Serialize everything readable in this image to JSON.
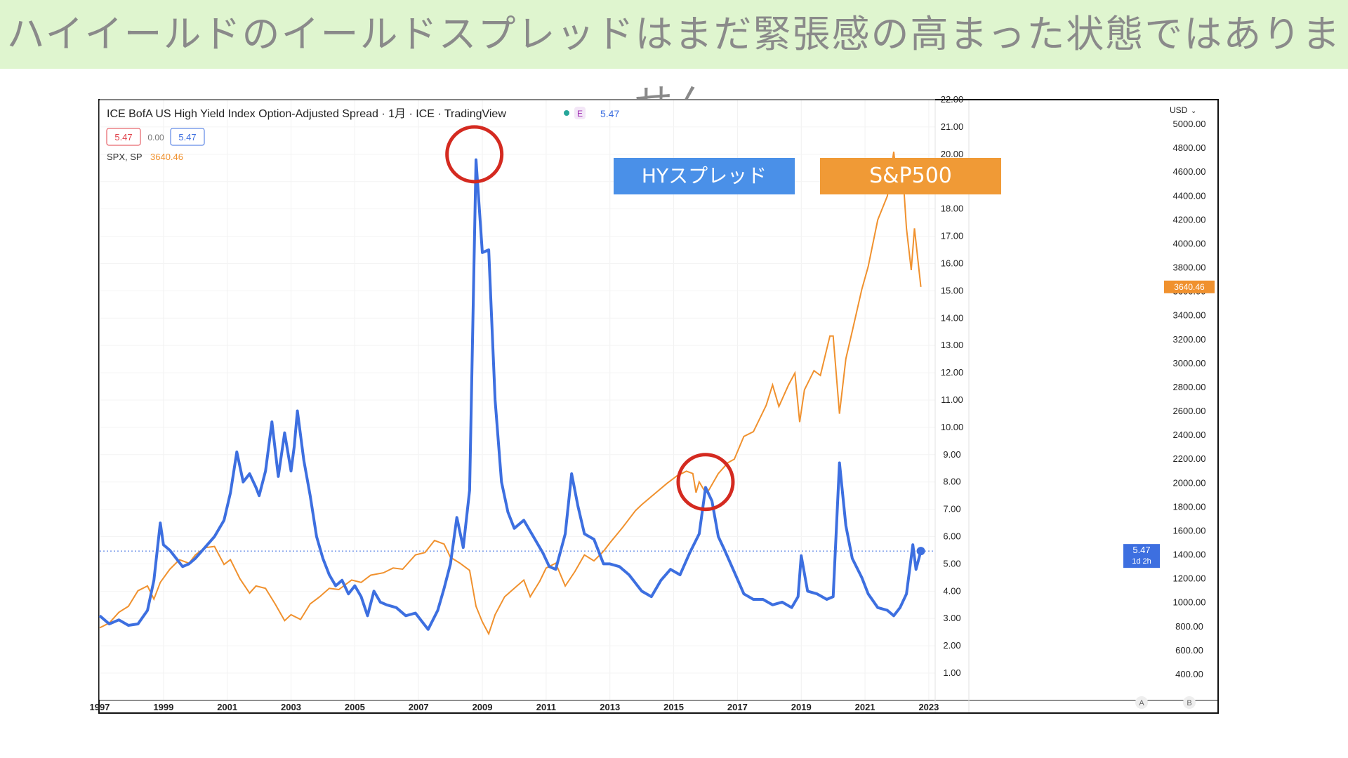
{
  "slide_title": "ハイイールドのイールドスプレッドはまだ緊張感の高まった状態ではありません",
  "chart_header": {
    "title": "ICE BofA US High Yield Index Option-Adjusted Spread · 1月 · ICE · TradingView",
    "badge": "E",
    "hy_value": "5.47",
    "ohlc": [
      "5.47",
      "0.00",
      "5.47"
    ],
    "spx_label": "SPX, SP",
    "spx_value": "3640.46"
  },
  "callouts": {
    "hy": "HYスプレッド",
    "sp": "S&P500"
  },
  "axis": {
    "currency": "USD",
    "last_hy": "5.47",
    "last_hy_sub": "1d 2h",
    "last_sp": "3640.46",
    "scale_a": "A",
    "scale_b": "B"
  },
  "colors": {
    "hy": "#3d6fe0",
    "sp": "#f0912e",
    "circle": "#d42a20",
    "hy_box": "#4a90e8",
    "sp_box": "#f09a36"
  },
  "chart_data": {
    "type": "line",
    "x_ticks": [
      "1997",
      "1999",
      "2001",
      "2003",
      "2005",
      "2007",
      "2009",
      "2011",
      "2013",
      "2015",
      "2017",
      "2019",
      "2021",
      "2023"
    ],
    "y_left_ticks": [
      "22.00",
      "21.00",
      "20.00",
      "19.00",
      "18.00",
      "17.00",
      "16.00",
      "15.00",
      "14.00",
      "13.00",
      "12.00",
      "11.00",
      "10.00",
      "9.00",
      "8.00",
      "7.00",
      "6.00",
      "5.00",
      "4.00",
      "3.00",
      "2.00",
      "1.00"
    ],
    "y_right_ticks": [
      "5000.00",
      "4800.00",
      "4600.00",
      "4400.00",
      "4200.00",
      "4000.00",
      "3800.00",
      "3600.00",
      "3400.00",
      "3200.00",
      "3000.00",
      "2800.00",
      "2600.00",
      "2400.00",
      "2200.00",
      "2000.00",
      "1800.00",
      "1600.00",
      "1400.00",
      "1200.00",
      "1000.00",
      "800.00",
      "600.00",
      "400.00"
    ],
    "x_range": [
      1997.0,
      2023.2
    ],
    "y_left_range": [
      0.95,
      22.0
    ],
    "y_right_range": [
      400,
      5000
    ],
    "series": [
      {
        "name": "ICE BofA US High Yield Index Option-Adjusted Spread",
        "axis": "left",
        "points": [
          [
            1997.0,
            3.1
          ],
          [
            1997.3,
            2.8
          ],
          [
            1997.6,
            2.95
          ],
          [
            1997.9,
            2.75
          ],
          [
            1998.2,
            2.8
          ],
          [
            1998.5,
            3.3
          ],
          [
            1998.7,
            4.4
          ],
          [
            1998.9,
            6.5
          ],
          [
            1999.0,
            5.7
          ],
          [
            1999.2,
            5.5
          ],
          [
            1999.4,
            5.2
          ],
          [
            1999.6,
            4.9
          ],
          [
            1999.8,
            5.0
          ],
          [
            2000.0,
            5.2
          ],
          [
            2000.3,
            5.6
          ],
          [
            2000.6,
            6.0
          ],
          [
            2000.9,
            6.6
          ],
          [
            2001.1,
            7.6
          ],
          [
            2001.3,
            9.1
          ],
          [
            2001.5,
            8.0
          ],
          [
            2001.7,
            8.3
          ],
          [
            2001.9,
            7.8
          ],
          [
            2002.0,
            7.5
          ],
          [
            2002.2,
            8.4
          ],
          [
            2002.4,
            10.2
          ],
          [
            2002.6,
            8.2
          ],
          [
            2002.8,
            9.8
          ],
          [
            2003.0,
            8.4
          ],
          [
            2003.1,
            9.3
          ],
          [
            2003.2,
            10.6
          ],
          [
            2003.4,
            8.8
          ],
          [
            2003.6,
            7.5
          ],
          [
            2003.8,
            6.0
          ],
          [
            2004.0,
            5.2
          ],
          [
            2004.2,
            4.6
          ],
          [
            2004.4,
            4.2
          ],
          [
            2004.6,
            4.4
          ],
          [
            2004.8,
            3.9
          ],
          [
            2005.0,
            4.2
          ],
          [
            2005.2,
            3.8
          ],
          [
            2005.4,
            3.1
          ],
          [
            2005.6,
            4.0
          ],
          [
            2005.8,
            3.6
          ],
          [
            2006.0,
            3.5
          ],
          [
            2006.3,
            3.4
          ],
          [
            2006.6,
            3.1
          ],
          [
            2006.9,
            3.2
          ],
          [
            2007.1,
            2.9
          ],
          [
            2007.3,
            2.6
          ],
          [
            2007.6,
            3.3
          ],
          [
            2007.8,
            4.1
          ],
          [
            2008.0,
            5.0
          ],
          [
            2008.2,
            6.7
          ],
          [
            2008.4,
            5.6
          ],
          [
            2008.6,
            7.7
          ],
          [
            2008.8,
            19.8
          ],
          [
            2009.0,
            16.4
          ],
          [
            2009.2,
            16.5
          ],
          [
            2009.4,
            11.0
          ],
          [
            2009.6,
            8.0
          ],
          [
            2009.8,
            6.9
          ],
          [
            2010.0,
            6.3
          ],
          [
            2010.3,
            6.6
          ],
          [
            2010.6,
            6.0
          ],
          [
            2010.9,
            5.4
          ],
          [
            2011.1,
            4.9
          ],
          [
            2011.3,
            4.8
          ],
          [
            2011.6,
            6.1
          ],
          [
            2011.8,
            8.3
          ],
          [
            2012.0,
            7.1
          ],
          [
            2012.2,
            6.1
          ],
          [
            2012.5,
            5.9
          ],
          [
            2012.8,
            5.0
          ],
          [
            2013.0,
            5.0
          ],
          [
            2013.3,
            4.9
          ],
          [
            2013.6,
            4.6
          ],
          [
            2014.0,
            4.0
          ],
          [
            2014.3,
            3.8
          ],
          [
            2014.6,
            4.4
          ],
          [
            2014.9,
            4.8
          ],
          [
            2015.2,
            4.6
          ],
          [
            2015.5,
            5.4
          ],
          [
            2015.8,
            6.1
          ],
          [
            2016.0,
            7.8
          ],
          [
            2016.2,
            7.3
          ],
          [
            2016.4,
            6.0
          ],
          [
            2016.6,
            5.5
          ],
          [
            2016.9,
            4.7
          ],
          [
            2017.2,
            3.9
          ],
          [
            2017.5,
            3.7
          ],
          [
            2017.8,
            3.7
          ],
          [
            2018.1,
            3.5
          ],
          [
            2018.4,
            3.6
          ],
          [
            2018.7,
            3.4
          ],
          [
            2018.9,
            3.8
          ],
          [
            2019.0,
            5.3
          ],
          [
            2019.2,
            4.0
          ],
          [
            2019.5,
            3.9
          ],
          [
            2019.8,
            3.7
          ],
          [
            2020.0,
            3.8
          ],
          [
            2020.2,
            8.7
          ],
          [
            2020.4,
            6.4
          ],
          [
            2020.6,
            5.2
          ],
          [
            2020.9,
            4.5
          ],
          [
            2021.1,
            3.9
          ],
          [
            2021.4,
            3.4
          ],
          [
            2021.7,
            3.3
          ],
          [
            2021.9,
            3.1
          ],
          [
            2022.1,
            3.4
          ],
          [
            2022.3,
            3.9
          ],
          [
            2022.5,
            5.7
          ],
          [
            2022.6,
            4.8
          ],
          [
            2022.75,
            5.47
          ]
        ]
      },
      {
        "name": "SPX, SP",
        "axis": "right",
        "points": [
          [
            1997.0,
            790
          ],
          [
            1997.3,
            830
          ],
          [
            1997.6,
            920
          ],
          [
            1997.9,
            970
          ],
          [
            1998.2,
            1100
          ],
          [
            1998.5,
            1140
          ],
          [
            1998.7,
            1030
          ],
          [
            1998.9,
            1170
          ],
          [
            1999.2,
            1280
          ],
          [
            1999.5,
            1360
          ],
          [
            1999.8,
            1330
          ],
          [
            2000.0,
            1400
          ],
          [
            2000.3,
            1460
          ],
          [
            2000.6,
            1470
          ],
          [
            2000.9,
            1320
          ],
          [
            2001.1,
            1360
          ],
          [
            2001.4,
            1200
          ],
          [
            2001.7,
            1080
          ],
          [
            2001.9,
            1140
          ],
          [
            2002.2,
            1120
          ],
          [
            2002.5,
            990
          ],
          [
            2002.8,
            850
          ],
          [
            2003.0,
            900
          ],
          [
            2003.3,
            860
          ],
          [
            2003.6,
            990
          ],
          [
            2003.9,
            1050
          ],
          [
            2004.2,
            1120
          ],
          [
            2004.5,
            1110
          ],
          [
            2004.9,
            1190
          ],
          [
            2005.2,
            1170
          ],
          [
            2005.5,
            1230
          ],
          [
            2005.9,
            1250
          ],
          [
            2006.2,
            1290
          ],
          [
            2006.5,
            1280
          ],
          [
            2006.9,
            1400
          ],
          [
            2007.2,
            1420
          ],
          [
            2007.5,
            1520
          ],
          [
            2007.8,
            1490
          ],
          [
            2008.0,
            1380
          ],
          [
            2008.3,
            1330
          ],
          [
            2008.6,
            1270
          ],
          [
            2008.8,
            970
          ],
          [
            2009.0,
            840
          ],
          [
            2009.2,
            740
          ],
          [
            2009.4,
            900
          ],
          [
            2009.7,
            1050
          ],
          [
            2010.0,
            1120
          ],
          [
            2010.3,
            1190
          ],
          [
            2010.5,
            1050
          ],
          [
            2010.8,
            1180
          ],
          [
            2011.0,
            1290
          ],
          [
            2011.3,
            1330
          ],
          [
            2011.6,
            1140
          ],
          [
            2011.9,
            1260
          ],
          [
            2012.2,
            1400
          ],
          [
            2012.5,
            1350
          ],
          [
            2012.8,
            1430
          ],
          [
            2013.0,
            1500
          ],
          [
            2013.4,
            1630
          ],
          [
            2013.8,
            1770
          ],
          [
            2014.0,
            1820
          ],
          [
            2014.4,
            1910
          ],
          [
            2014.8,
            2000
          ],
          [
            2015.1,
            2060
          ],
          [
            2015.4,
            2100
          ],
          [
            2015.6,
            2080
          ],
          [
            2015.7,
            1920
          ],
          [
            2015.8,
            2010
          ],
          [
            2016.0,
            1920
          ],
          [
            2016.1,
            1940
          ],
          [
            2016.4,
            2080
          ],
          [
            2016.7,
            2170
          ],
          [
            2016.9,
            2200
          ],
          [
            2017.2,
            2390
          ],
          [
            2017.5,
            2430
          ],
          [
            2017.9,
            2650
          ],
          [
            2018.1,
            2820
          ],
          [
            2018.3,
            2640
          ],
          [
            2018.6,
            2820
          ],
          [
            2018.8,
            2920
          ],
          [
            2018.95,
            2510
          ],
          [
            2019.1,
            2780
          ],
          [
            2019.4,
            2940
          ],
          [
            2019.6,
            2900
          ],
          [
            2019.9,
            3230
          ],
          [
            2020.0,
            3230
          ],
          [
            2020.2,
            2580
          ],
          [
            2020.4,
            3040
          ],
          [
            2020.6,
            3270
          ],
          [
            2020.9,
            3620
          ],
          [
            2021.1,
            3810
          ],
          [
            2021.4,
            4200
          ],
          [
            2021.7,
            4400
          ],
          [
            2021.9,
            4770
          ],
          [
            2022.0,
            4520
          ],
          [
            2022.2,
            4530
          ],
          [
            2022.3,
            4130
          ],
          [
            2022.45,
            3780
          ],
          [
            2022.55,
            4130
          ],
          [
            2022.75,
            3640
          ]
        ]
      }
    ],
    "hy_level_line": 5.47,
    "highlight_circles": [
      [
        2008.75,
        20.0
      ],
      [
        2016.0,
        8.0
      ]
    ]
  }
}
